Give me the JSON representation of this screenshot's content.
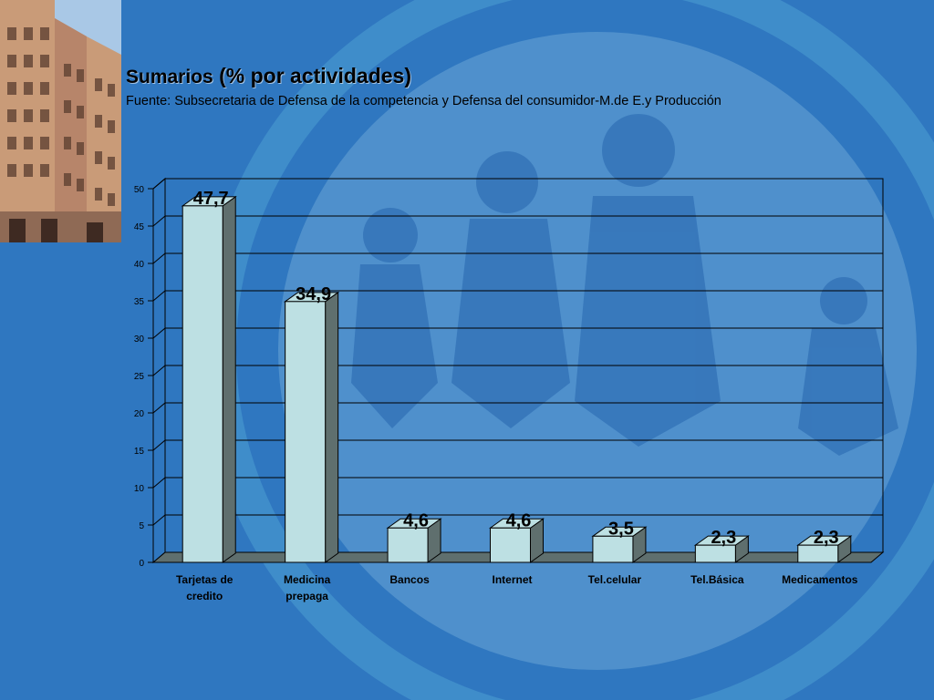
{
  "slide": {
    "title_part1": "Sumarios",
    "title_part2": "(% por actividades)",
    "subtitle": "Fuente: Subsecretaria de Defensa de la competencia y Defensa del consumidor-M.de E.y Producción"
  },
  "colors": {
    "background": "#2f77c0",
    "bar_front": "#bde0e3",
    "bar_side": "#5f6f6e",
    "floor": "#5f6f6e",
    "gridline": "#000000"
  },
  "chart_data": {
    "type": "bar",
    "style": "3d",
    "categories": [
      "Tarjetas de credito",
      "Medicina prepaga",
      "Bancos",
      "Internet",
      "Tel.celular",
      "Tel.Básica",
      "Medicamentos"
    ],
    "category_lines": [
      [
        "Tarjetas de",
        "credito"
      ],
      [
        "Medicina",
        "prepaga"
      ],
      [
        "Bancos"
      ],
      [
        "Internet"
      ],
      [
        "Tel.celular"
      ],
      [
        "Tel.Básica"
      ],
      [
        "Medicamentos"
      ]
    ],
    "values": [
      47.7,
      34.9,
      4.6,
      4.6,
      3.5,
      2.3,
      2.3
    ],
    "data_labels": [
      "47,7",
      "34,9",
      "4,6",
      "4,6",
      "3,5",
      "2,3",
      "2,3"
    ],
    "yticks": [
      0,
      5,
      10,
      15,
      20,
      25,
      30,
      35,
      40,
      45,
      50
    ],
    "ylim": [
      0,
      50
    ],
    "grid": true,
    "legend": "none"
  }
}
